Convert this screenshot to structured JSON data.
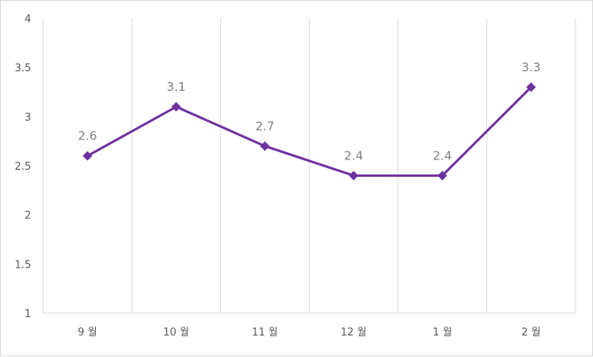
{
  "chart_data": {
    "type": "line",
    "title": "",
    "xlabel": "",
    "ylabel": "",
    "categories": [
      "9 월",
      "10 월",
      "11 월",
      "12 월",
      "1 월",
      "2 월"
    ],
    "series": [
      {
        "values": [
          2.6,
          3.1,
          2.7,
          2.4,
          2.4,
          3.3
        ]
      }
    ],
    "data_labels": [
      "2.6",
      "3.1",
      "2.7",
      "2.4",
      "2.4",
      "3.3"
    ],
    "ylim": [
      1,
      4
    ],
    "y_ticks": [
      "1",
      "1.5",
      "2",
      "2.5",
      "3",
      "3.5",
      "4"
    ],
    "grid": "vertical",
    "legend": "none",
    "marker": "diamond",
    "colors": {
      "line": "#7030a0",
      "grid": "#d9d9d9",
      "axis_text": "#595959",
      "data_label": "#7f7f7f"
    }
  }
}
